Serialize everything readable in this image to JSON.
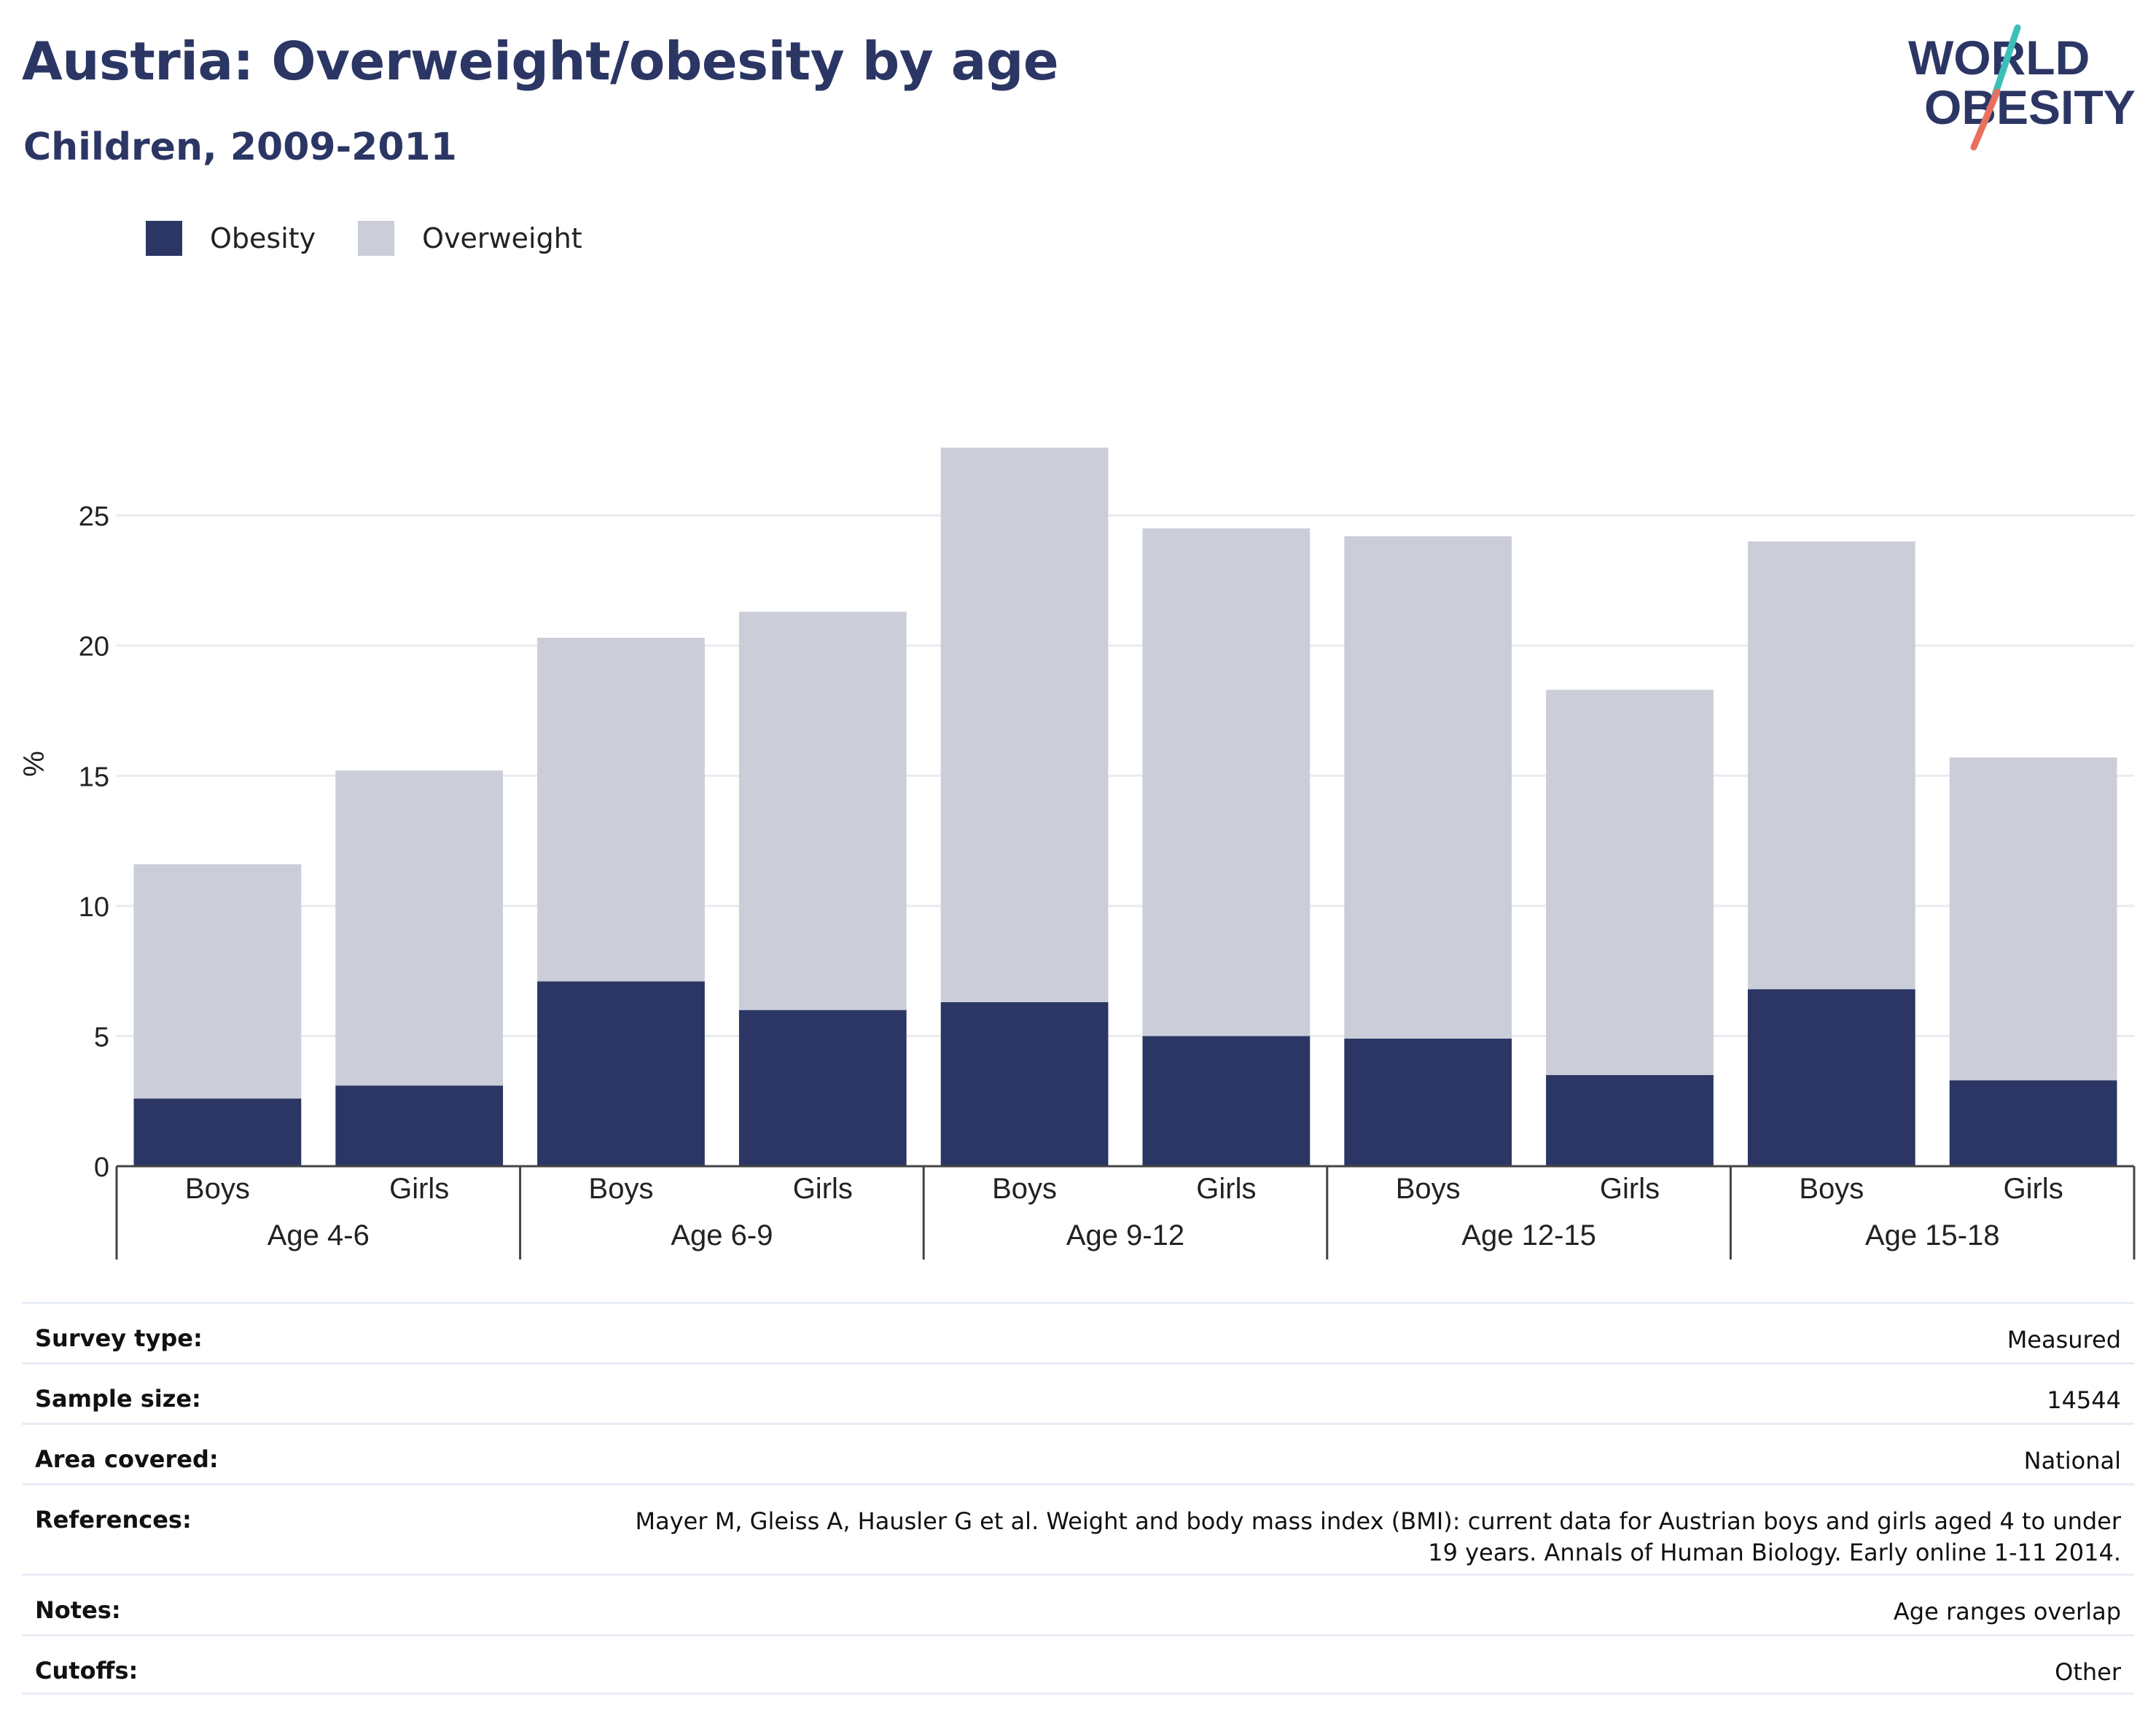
{
  "header": {
    "title": "Austria: Overweight/obesity by age",
    "subtitle": "Children, 2009-2011"
  },
  "logo": {
    "line1": "WORLD",
    "line2": "OBESITY",
    "colors": {
      "text": "#2b3664",
      "accent_teal": "#3bbfb8",
      "accent_coral": "#e8705f"
    }
  },
  "colors": {
    "obesity": "#2b3664",
    "overweight": "#cbcdd9",
    "grid": "#e9ebf0",
    "axis": "#444444"
  },
  "chart_data": {
    "type": "bar",
    "stacked": true,
    "ylabel": "%",
    "ylim": [
      0,
      28
    ],
    "yticks": [
      0,
      5,
      10,
      15,
      20,
      25
    ],
    "grid": true,
    "legend_position": "top-left",
    "categories": [
      "Boys",
      "Girls",
      "Boys",
      "Girls",
      "Boys",
      "Girls",
      "Boys",
      "Girls",
      "Boys",
      "Girls"
    ],
    "groups": [
      {
        "label": "Age 4-6",
        "span": 2
      },
      {
        "label": "Age 6-9",
        "span": 2
      },
      {
        "label": "Age 9-12",
        "span": 2
      },
      {
        "label": "Age 12-15",
        "span": 2
      },
      {
        "label": "Age 15-18",
        "span": 2
      }
    ],
    "series": [
      {
        "name": "Obesity",
        "values": [
          2.6,
          3.1,
          7.1,
          6.0,
          6.3,
          5.0,
          4.9,
          3.5,
          6.8,
          3.3
        ]
      },
      {
        "name": "Overweight",
        "values": [
          9.0,
          12.1,
          13.2,
          15.3,
          21.3,
          19.5,
          19.3,
          14.8,
          17.2,
          12.4
        ]
      }
    ]
  },
  "info": {
    "rows": [
      {
        "label": "Survey type:",
        "value": "Measured"
      },
      {
        "label": "Sample size:",
        "value": "14544"
      },
      {
        "label": "Area covered:",
        "value": "National"
      },
      {
        "label": "References:",
        "value": "Mayer M, Gleiss A, Hausler G et al. Weight and body mass index (BMI): current data for Austrian boys and girls aged 4 to under 19 years. Annals of Human Biology. Early online 1-11 2014."
      },
      {
        "label": "Notes:",
        "value": "Age ranges overlap"
      },
      {
        "label": "Cutoffs:",
        "value": "Other"
      }
    ]
  }
}
